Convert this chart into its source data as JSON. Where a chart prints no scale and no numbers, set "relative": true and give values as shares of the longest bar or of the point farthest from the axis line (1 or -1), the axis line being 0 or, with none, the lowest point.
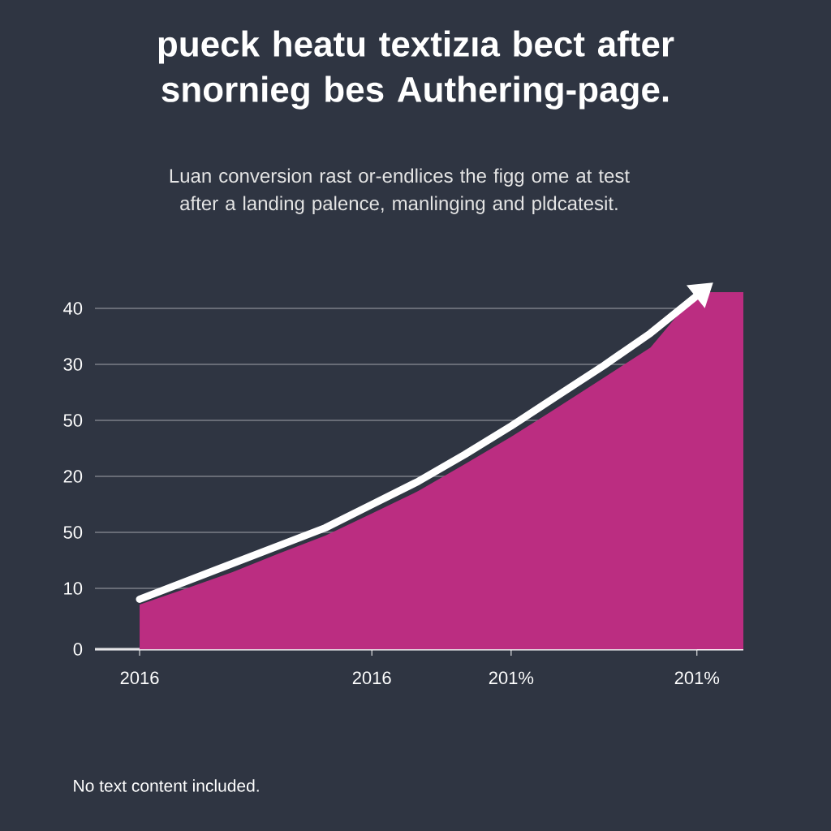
{
  "chart_data": {
    "type": "area",
    "title": "pueck heatu textizıa bect after snornieg bes Authering-page.",
    "subtitle": "Luan conversion rast or-endlices the figg ome at test after a landing palence, manlinging and pldcatesit.",
    "annotations": [
      "0",
      "10",
      "50",
      "20",
      "50",
      "30",
      "40",
      "No text content included."
    ],
    "relative": true,
    "grid": true,
    "categories": [
      "2016",
      null,
      null,
      null,
      null,
      "2016",
      null,
      null,
      "201%",
      null,
      null,
      null,
      "201%",
      null
    ],
    "series": [
      {
        "color": "#bb2d81",
        "values": [
          0.125,
          0.17,
          0.216,
          0.268,
          0.318,
          0.38,
          0.443,
          0.518,
          0.595,
          0.677,
          0.761,
          0.845,
          1,
          1
        ]
      },
      {
        "type": "line",
        "color": "#ffffff",
        "values": [
          0.14,
          0.19,
          0.24,
          0.29,
          0.34,
          0.405,
          0.47,
          0.545,
          0.625,
          0.71,
          0.795,
          0.885,
          0.99,
          null
        ]
      }
    ]
  }
}
